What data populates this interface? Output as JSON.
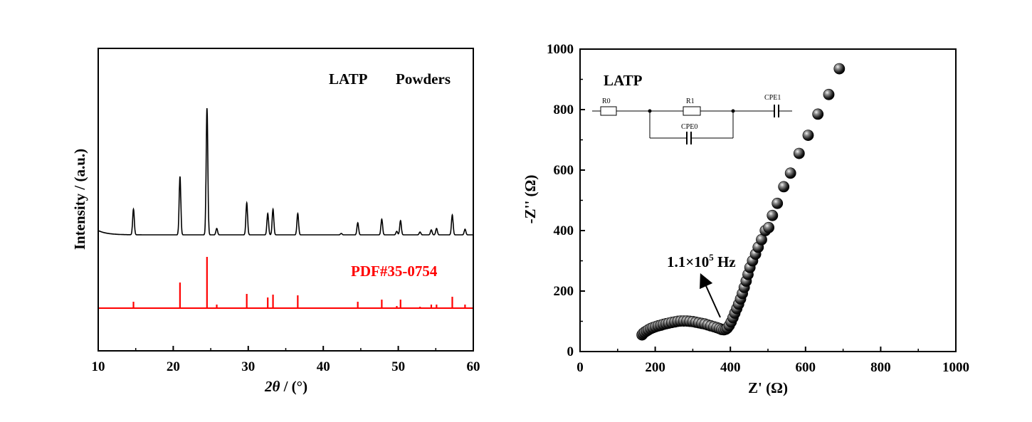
{
  "chart_data": [
    {
      "type": "line",
      "title": "",
      "xlabel_symbol": "2θ",
      "xlabel_rest": " / (°)",
      "ylabel": "Intensity / (a.u.)",
      "xlim": [
        10,
        60
      ],
      "xticks": [
        10,
        20,
        30,
        40,
        50,
        60
      ],
      "yticks_shown": false,
      "grid": false,
      "annotations": [
        {
          "text": "LATP",
          "color": "#000000"
        },
        {
          "text": "Powders",
          "color": "#000000"
        },
        {
          "text": "PDF#35-0754",
          "color": "#ff0000"
        }
      ],
      "series": [
        {
          "color": "#000000",
          "baseline_au": 0.06,
          "peaks": [
            {
              "x": 14.7,
              "y": 0.36
            },
            {
              "x": 20.9,
              "y": 0.82
            },
            {
              "x": 24.5,
              "y": 1.78
            },
            {
              "x": 25.8,
              "y": 0.09
            },
            {
              "x": 29.8,
              "y": 0.45
            },
            {
              "x": 32.6,
              "y": 0.3
            },
            {
              "x": 33.3,
              "y": 0.36
            },
            {
              "x": 36.6,
              "y": 0.3
            },
            {
              "x": 42.4,
              "y": 0.02
            },
            {
              "x": 44.6,
              "y": 0.17
            },
            {
              "x": 47.8,
              "y": 0.22
            },
            {
              "x": 49.8,
              "y": 0.05
            },
            {
              "x": 50.3,
              "y": 0.2
            },
            {
              "x": 52.9,
              "y": 0.04
            },
            {
              "x": 54.4,
              "y": 0.07
            },
            {
              "x": 55.1,
              "y": 0.09
            },
            {
              "x": 57.2,
              "y": 0.28
            },
            {
              "x": 58.9,
              "y": 0.08
            }
          ]
        },
        {
          "color": "#ff0000",
          "type": "stick",
          "sticks": [
            {
              "x": 14.7,
              "y": 0.09
            },
            {
              "x": 20.9,
              "y": 0.36
            },
            {
              "x": 24.5,
              "y": 0.72
            },
            {
              "x": 25.8,
              "y": 0.05
            },
            {
              "x": 29.8,
              "y": 0.2
            },
            {
              "x": 32.6,
              "y": 0.15
            },
            {
              "x": 33.3,
              "y": 0.19
            },
            {
              "x": 36.6,
              "y": 0.18
            },
            {
              "x": 42.4,
              "y": 0.01
            },
            {
              "x": 44.6,
              "y": 0.09
            },
            {
              "x": 47.8,
              "y": 0.12
            },
            {
              "x": 49.8,
              "y": 0.03
            },
            {
              "x": 50.3,
              "y": 0.12
            },
            {
              "x": 52.9,
              "y": 0.02
            },
            {
              "x": 54.4,
              "y": 0.05
            },
            {
              "x": 55.1,
              "y": 0.05
            },
            {
              "x": 57.2,
              "y": 0.16
            },
            {
              "x": 58.9,
              "y": 0.05
            }
          ]
        }
      ]
    },
    {
      "type": "scatter",
      "title": "",
      "xlabel": "Z' (Ω)",
      "ylabel": "-Z'' (Ω)",
      "xlim": [
        0,
        1000
      ],
      "ylim": [
        0,
        1000
      ],
      "xticks": [
        0,
        200,
        400,
        600,
        800,
        1000
      ],
      "yticks": [
        0,
        200,
        400,
        600,
        800,
        1000
      ],
      "grid": false,
      "annotations": [
        {
          "text": "LATP"
        },
        {
          "text_base": "1.1×10",
          "text_sup": "5",
          "text_unit": " Hz"
        }
      ],
      "circuit_labels": [
        "R0",
        "R1",
        "CPE1",
        "CPE0"
      ],
      "series": [
        {
          "marker": "sphere",
          "points": [
            [
              165,
              55
            ],
            [
              168,
              60
            ],
            [
              172,
              64
            ],
            [
              177,
              68
            ],
            [
              182,
              72
            ],
            [
              188,
              76
            ],
            [
              194,
              79
            ],
            [
              201,
              82
            ],
            [
              208,
              85
            ],
            [
              215,
              87
            ],
            [
              222,
              90
            ],
            [
              229,
              92
            ],
            [
              236,
              94
            ],
            [
              244,
              96
            ],
            [
              252,
              98
            ],
            [
              260,
              100
            ],
            [
              268,
              101
            ],
            [
              276,
              101
            ],
            [
              284,
              101
            ],
            [
              292,
              100
            ],
            [
              300,
              99
            ],
            [
              308,
              97
            ],
            [
              316,
              95
            ],
            [
              324,
              93
            ],
            [
              332,
              91
            ],
            [
              340,
              88
            ],
            [
              348,
              85
            ],
            [
              356,
              82
            ],
            [
              364,
              79
            ],
            [
              371,
              76
            ],
            [
              377,
              73
            ],
            [
              383,
              72
            ],
            [
              388,
              74
            ],
            [
              392,
              78
            ],
            [
              397,
              86
            ],
            [
              402,
              98
            ],
            [
              407,
              112
            ],
            [
              412,
              127
            ],
            [
              417,
              142
            ],
            [
              422,
              157
            ],
            [
              427,
              174
            ],
            [
              432,
              192
            ],
            [
              437,
              212
            ],
            [
              442,
              233
            ],
            [
              447,
              255
            ],
            [
              452,
              278
            ],
            [
              459,
              300
            ],
            [
              467,
              322
            ],
            [
              474,
              345
            ],
            [
              483,
              370
            ],
            [
              493,
              400
            ],
            [
              502,
              410
            ],
            [
              512,
              450
            ],
            [
              525,
              490
            ],
            [
              542,
              545
            ],
            [
              560,
              590
            ],
            [
              583,
              655
            ],
            [
              607,
              715
            ],
            [
              633,
              785
            ],
            [
              662,
              850
            ],
            [
              690,
              935
            ]
          ]
        }
      ]
    }
  ]
}
